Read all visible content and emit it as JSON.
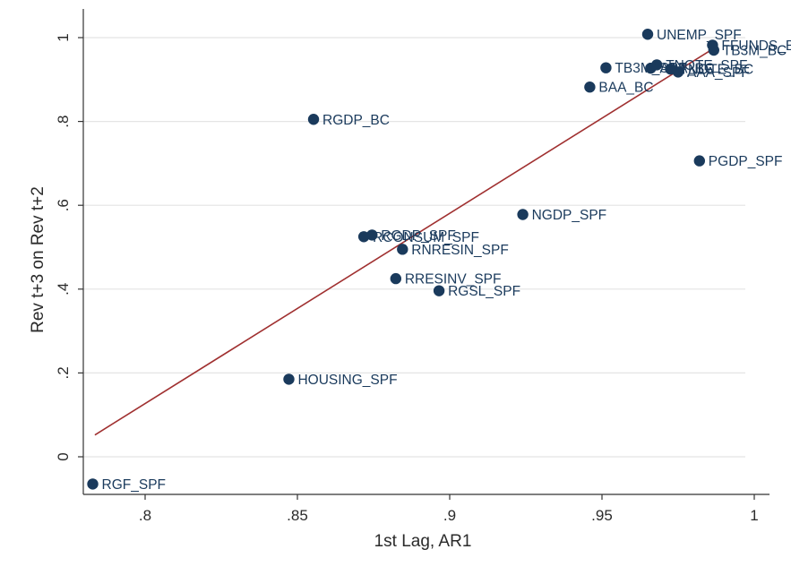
{
  "chart_data": {
    "type": "scatter",
    "xlabel": "1st Lag, AR1",
    "ylabel": "Rev t+3 on Rev t+2",
    "xlim": [
      0.78,
      1.0
    ],
    "ylim": [
      -0.08,
      1.07
    ],
    "x_ticks": [
      {
        "value": 0.8,
        "label": ".8"
      },
      {
        "value": 0.85,
        "label": ".85"
      },
      {
        "value": 0.9,
        "label": ".9"
      },
      {
        "value": 0.95,
        "label": ".95"
      },
      {
        "value": 1.0,
        "label": "1"
      }
    ],
    "y_ticks": [
      {
        "value": 0,
        "label": "0"
      },
      {
        "value": 0.2,
        "label": ".2"
      },
      {
        "value": 0.4,
        "label": ".4"
      },
      {
        "value": 0.6,
        "label": ".6"
      },
      {
        "value": 0.8,
        "label": ".8"
      },
      {
        "value": 1.0,
        "label": "1"
      }
    ],
    "grid": "horizontal",
    "legend": "none",
    "fit_line": {
      "x": [
        0.7835,
        0.9875
      ],
      "y": [
        0.052,
        0.978
      ]
    },
    "colors": {
      "marker": "#1a3a5c",
      "fit_line": "#a03030",
      "grid": "#e4e4e4",
      "axis": "#333333"
    },
    "points": [
      {
        "label": "RGF_SPF",
        "x": 0.7828,
        "y": -0.065
      },
      {
        "label": "HOUSING_SPF",
        "x": 0.8472,
        "y": 0.185
      },
      {
        "label": "RGDP_BC",
        "x": 0.8553,
        "y": 0.805
      },
      {
        "label": "RCONSUM_SPF",
        "x": 0.8718,
        "y": 0.525
      },
      {
        "label": "RGDP_SPF",
        "x": 0.8745,
        "y": 0.529
      },
      {
        "label": "RNRESIN_SPF",
        "x": 0.8845,
        "y": 0.495
      },
      {
        "label": "RRESINV_SPF",
        "x": 0.8823,
        "y": 0.425
      },
      {
        "label": "RGSL_SPF",
        "x": 0.8965,
        "y": 0.396
      },
      {
        "label": "NGDP_SPF",
        "x": 0.924,
        "y": 0.578
      },
      {
        "label": "BAA_BC",
        "x": 0.946,
        "y": 0.882
      },
      {
        "label": "TB3M_SPF",
        "x": 0.9513,
        "y": 0.928
      },
      {
        "label": "UNEMP_SPF",
        "x": 0.965,
        "y": 1.008
      },
      {
        "label": "FFUNDS_BC",
        "x": 0.9863,
        "y": 0.982
      },
      {
        "label": "TB3M_BC",
        "x": 0.9867,
        "y": 0.97
      },
      {
        "label": "TNOTE_SPF",
        "x": 0.968,
        "y": 0.935
      },
      {
        "label": "TNOTE_BC",
        "x": 0.9725,
        "y": 0.925
      },
      {
        "label": "AAA_SPF",
        "x": 0.975,
        "y": 0.918
      },
      {
        "label": "AAA_BC",
        "x": 0.966,
        "y": 0.927
      },
      {
        "label": "PGDP_SPF",
        "x": 0.982,
        "y": 0.706
      }
    ]
  }
}
